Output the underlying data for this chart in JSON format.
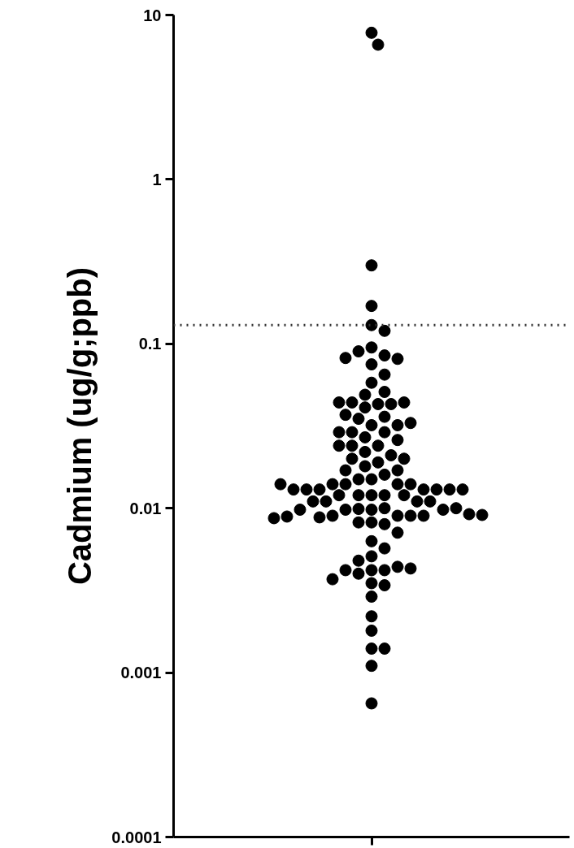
{
  "chart_data": {
    "type": "scatter",
    "ylabel": "Cadmium (ug/g;ppb)",
    "categories": [
      null
    ],
    "log": "y",
    "ylim": [
      0.0001,
      10
    ],
    "yticks": [
      10,
      1,
      0.1,
      0.01,
      0.001,
      0.0001
    ],
    "grid": false,
    "marker": "circle",
    "ref_lines": [
      {
        "axis": "y",
        "value": 0.13,
        "line_style": "dotted",
        "color": "#333333"
      }
    ],
    "series": [
      {
        "color": "#000000",
        "x": [
          null,
          null,
          null,
          null,
          null,
          null,
          null,
          null,
          null,
          null,
          null,
          null,
          null,
          null,
          null,
          null,
          null,
          null,
          null,
          null,
          null,
          null,
          null,
          null,
          null,
          null,
          null,
          null,
          null,
          null,
          null,
          null,
          null,
          null,
          null,
          null,
          null,
          null,
          null,
          null,
          null,
          null,
          null,
          null,
          null,
          null,
          null,
          null,
          null,
          null,
          null,
          null,
          null,
          null,
          null,
          null,
          null,
          null,
          null,
          null,
          null,
          null,
          null,
          null,
          null,
          null,
          null,
          null,
          null,
          null,
          null,
          null,
          null,
          null,
          null,
          null,
          null,
          null,
          null,
          null,
          null,
          null,
          null,
          null,
          null,
          null,
          null,
          null,
          null,
          null,
          null,
          null,
          null,
          null,
          null,
          null,
          null,
          null,
          null,
          null,
          null,
          null,
          null,
          null,
          null,
          null,
          null,
          null
        ],
        "values": [
          7.8,
          6.6,
          0.3,
          0.17,
          0.13,
          0.12,
          0.095,
          0.085,
          0.09,
          0.081,
          0.082,
          0.075,
          0.065,
          0.058,
          0.051,
          0.049,
          0.043,
          0.044,
          0.043,
          0.044,
          0.041,
          0.044,
          0.036,
          0.037,
          0.032,
          0.035,
          0.032,
          0.033,
          0.029,
          0.027,
          0.029,
          0.029,
          0.026,
          0.024,
          0.024,
          0.024,
          0.022,
          0.021,
          0.019,
          0.02,
          0.02,
          0.018,
          0.016,
          0.017,
          0.017,
          0.015,
          0.015,
          0.014,
          0.014,
          0.014,
          0.012,
          0.012,
          0.012,
          0.014,
          0.013,
          0.013,
          0.013,
          0.013,
          0.013,
          0.012,
          0.012,
          0.013,
          0.013,
          0.014,
          0.0098,
          0.01,
          0.0099,
          0.011,
          0.011,
          0.011,
          0.011,
          0.009,
          0.0098,
          0.0098,
          0.0098,
          0.01,
          0.009,
          0.009,
          0.009,
          0.0088,
          0.0089,
          0.0092,
          0.0087,
          0.0091,
          0.0082,
          0.008,
          0.0082,
          0.0071,
          0.0063,
          0.0057,
          0.0051,
          0.0048,
          0.0042,
          0.0042,
          0.004,
          0.0044,
          0.0042,
          0.0043,
          0.0035,
          0.0034,
          0.0037,
          0.0029,
          0.0022,
          0.0018,
          0.0014,
          0.0014,
          0.0011,
          0.00065
        ]
      }
    ]
  }
}
